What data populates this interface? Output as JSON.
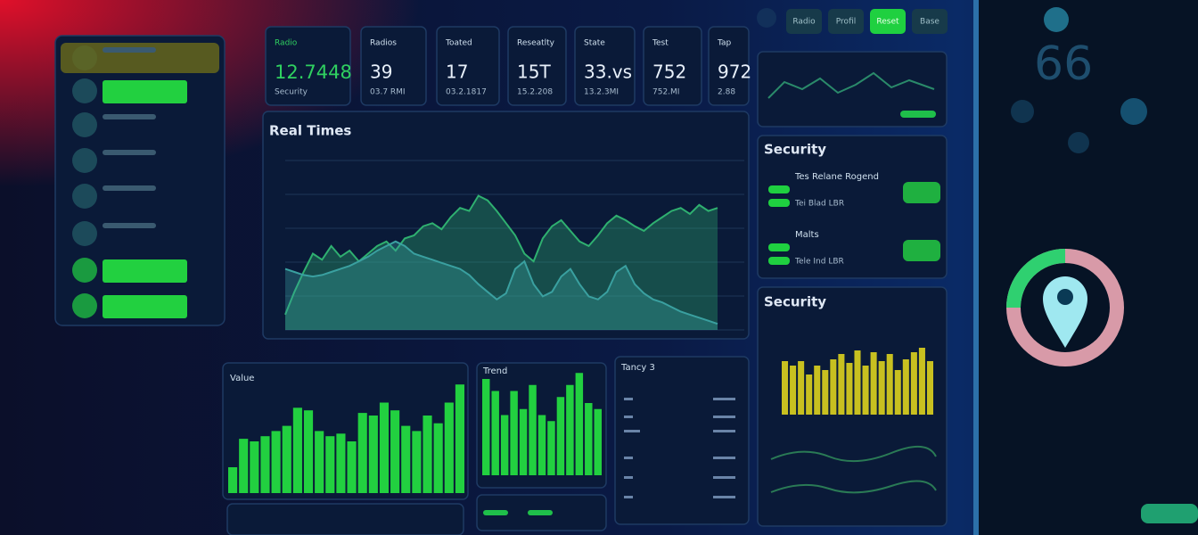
{
  "top_buttons": [
    "Radio",
    "Profil",
    "Reset",
    "Base"
  ],
  "stats": [
    {
      "label": "Radio",
      "value": "12.7448",
      "sub": "Security"
    },
    {
      "label": "Radios",
      "value": "39",
      "sub": "03.7 RMI"
    },
    {
      "label": "Toated",
      "value": "17",
      "sub": "03.2.1817"
    },
    {
      "label": "Reseatlty",
      "value": "15T",
      "sub": "15.2.208"
    },
    {
      "label": "State",
      "value": "33.vs",
      "sub": "13.2.3MI"
    },
    {
      "label": "Test",
      "value": "752",
      "sub": "752.MI"
    },
    {
      "label": "Tap",
      "value": "972",
      "sub": "2.88"
    }
  ],
  "realtime": {
    "title": "Real Times",
    "values": [
      10,
      25,
      38,
      50,
      46,
      55,
      48,
      52,
      45,
      50,
      55,
      58,
      52,
      60,
      62,
      68,
      70,
      66,
      74,
      80,
      78,
      88,
      85,
      78,
      70,
      62,
      50,
      45,
      60,
      68,
      72,
      65,
      58,
      55,
      62,
      70,
      75,
      72,
      68,
      65,
      70,
      74,
      78,
      80,
      76,
      82,
      78,
      80
    ],
    "values2": [
      40,
      38,
      36,
      35,
      36,
      38,
      40,
      42,
      45,
      48,
      52,
      55,
      58,
      55,
      50,
      48,
      46,
      44,
      42,
      40,
      36,
      30,
      25,
      20,
      24,
      40,
      45,
      30,
      22,
      25,
      35,
      40,
      30,
      22,
      20,
      25,
      38,
      42,
      30,
      24,
      20,
      18,
      15,
      12,
      10,
      8,
      6,
      4
    ]
  },
  "security": {
    "title": "Security",
    "rows": [
      {
        "title": "Tes Relane Rogend",
        "sub": "Tei Blad LBR"
      },
      {
        "title": "Malts",
        "sub": "Tele Ind LBR"
      }
    ]
  },
  "security2": {
    "title": "Security",
    "values": [
      60,
      55,
      60,
      45,
      55,
      50,
      62,
      68,
      58,
      72,
      55,
      70,
      60,
      68,
      50,
      62,
      70,
      75,
      60
    ]
  },
  "value_panel": {
    "title": "Value",
    "values": [
      20,
      42,
      40,
      44,
      48,
      52,
      66,
      64,
      48,
      44,
      46,
      40,
      62,
      60,
      70,
      64,
      52,
      48,
      60,
      54,
      70,
      84
    ]
  },
  "trend_panel": {
    "title": "Trend",
    "values": [
      80,
      70,
      50,
      70,
      55,
      75,
      50,
      45,
      65,
      75,
      85,
      60,
      55
    ]
  },
  "table_panel": {
    "title": "Tancy 3"
  },
  "gauge": {
    "value": "66"
  }
}
